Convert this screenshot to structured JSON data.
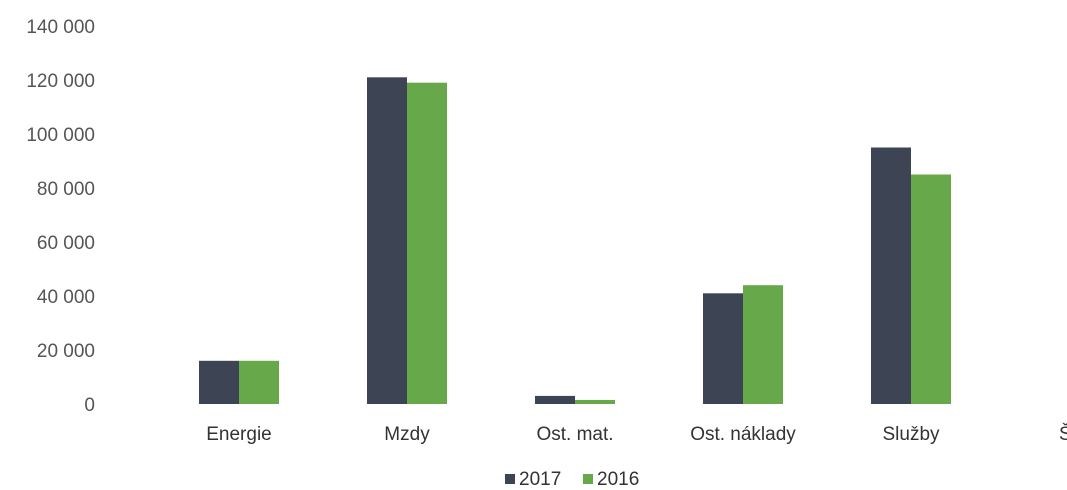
{
  "chart_data": {
    "type": "bar",
    "categories": [
      "Energie",
      "Mzdy",
      "Ost. mat.",
      "Ost. náklady",
      "Služby",
      "ŠZM"
    ],
    "series": [
      {
        "name": "2017",
        "color": "#3d4555",
        "values": [
          16000,
          121000,
          3000,
          41000,
          95000,
          0
        ]
      },
      {
        "name": "2016",
        "color": "#66a84a",
        "values": [
          16000,
          119000,
          1500,
          44000,
          85000,
          500
        ]
      }
    ],
    "y_ticks": [
      "140 000",
      "120 000",
      "100 000",
      "80 000",
      "60 000",
      "40 000",
      "20 000",
      "0"
    ],
    "ylim": [
      0,
      140000
    ],
    "grid": false,
    "legend_position": "bottom"
  }
}
